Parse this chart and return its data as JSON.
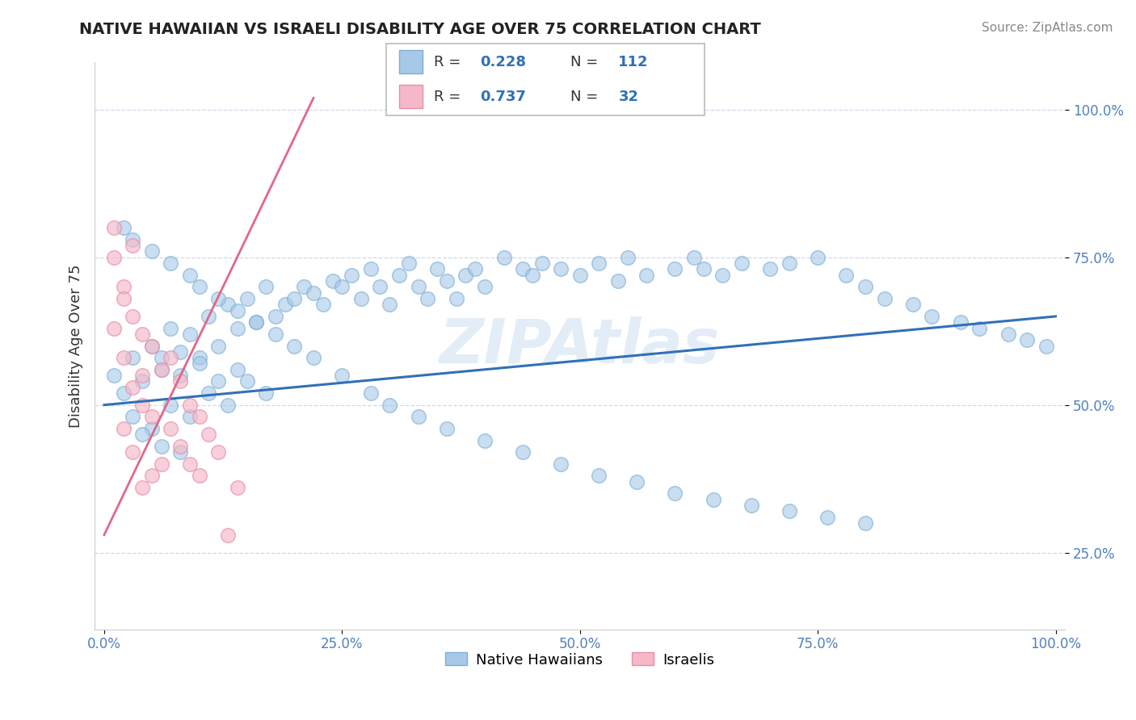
{
  "title": "NATIVE HAWAIIAN VS ISRAELI DISABILITY AGE OVER 75 CORRELATION CHART",
  "source": "Source: ZipAtlas.com",
  "ylabel": "Disability Age Over 75",
  "x_tick_labels": [
    "0.0%",
    "25.0%",
    "50.0%",
    "75.0%",
    "100.0%"
  ],
  "x_tick_vals": [
    0,
    25,
    50,
    75,
    100
  ],
  "y_tick_labels": [
    "25.0%",
    "50.0%",
    "75.0%",
    "100.0%"
  ],
  "y_tick_vals": [
    25,
    50,
    75,
    100
  ],
  "xlim": [
    -1,
    101
  ],
  "ylim": [
    12,
    108
  ],
  "blue_scatter_color": "#a8c8e8",
  "blue_edge_color": "#7bafd4",
  "pink_scatter_color": "#f4b8c8",
  "pink_edge_color": "#e890a8",
  "blue_line_color": "#3070b8",
  "pink_line_color": "#e06888",
  "watermark": "ZIPAtlas",
  "legend_R1": "0.228",
  "legend_N1": "112",
  "legend_R2": "0.737",
  "legend_N2": "32",
  "legend_text_color": "#3070b8",
  "legend_label_color": "#333333",
  "title_color": "#222222",
  "source_color": "#888888",
  "tick_color": "#5080c0",
  "grid_color": "#d0d8e8",
  "nh_x": [
    1,
    2,
    3,
    4,
    5,
    6,
    7,
    8,
    9,
    10,
    11,
    12,
    13,
    14,
    15,
    16,
    17,
    18,
    19,
    20,
    21,
    22,
    23,
    24,
    25,
    26,
    27,
    28,
    29,
    30,
    31,
    32,
    33,
    34,
    35,
    36,
    37,
    38,
    39,
    40,
    42,
    44,
    45,
    46,
    48,
    50,
    52,
    54,
    55,
    57,
    60,
    62,
    63,
    65,
    67,
    70,
    72,
    75,
    78,
    80,
    82,
    85,
    87,
    90,
    92,
    95,
    97,
    99,
    3,
    5,
    7,
    9,
    11,
    13,
    15,
    17,
    6,
    8,
    10,
    12,
    14,
    4,
    6,
    8,
    2,
    3,
    5,
    7,
    9,
    10,
    12,
    14,
    16,
    18,
    20,
    22,
    25,
    28,
    30,
    33,
    36,
    40,
    44,
    48,
    52,
    56,
    60,
    64,
    68,
    72,
    76,
    80
  ],
  "nh_y": [
    55,
    52,
    58,
    54,
    60,
    56,
    63,
    59,
    62,
    58,
    65,
    60,
    67,
    63,
    68,
    64,
    70,
    65,
    67,
    68,
    70,
    69,
    67,
    71,
    70,
    72,
    68,
    73,
    70,
    67,
    72,
    74,
    70,
    68,
    73,
    71,
    68,
    72,
    73,
    70,
    75,
    73,
    72,
    74,
    73,
    72,
    74,
    71,
    75,
    72,
    73,
    75,
    73,
    72,
    74,
    73,
    74,
    75,
    72,
    70,
    68,
    67,
    65,
    64,
    63,
    62,
    61,
    60,
    48,
    46,
    50,
    48,
    52,
    50,
    54,
    52,
    58,
    55,
    57,
    54,
    56,
    45,
    43,
    42,
    80,
    78,
    76,
    74,
    72,
    70,
    68,
    66,
    64,
    62,
    60,
    58,
    55,
    52,
    50,
    48,
    46,
    44,
    42,
    40,
    38,
    37,
    35,
    34,
    33,
    32,
    31,
    30
  ],
  "is_x": [
    1,
    1,
    2,
    2,
    2,
    3,
    3,
    3,
    4,
    4,
    4,
    5,
    5,
    5,
    6,
    6,
    7,
    7,
    8,
    8,
    9,
    9,
    10,
    10,
    11,
    12,
    13,
    14,
    1,
    2,
    3,
    4
  ],
  "is_y": [
    75,
    63,
    70,
    58,
    46,
    65,
    53,
    42,
    62,
    50,
    36,
    60,
    48,
    38,
    56,
    40,
    58,
    46,
    54,
    43,
    50,
    40,
    48,
    38,
    45,
    42,
    28,
    36,
    80,
    68,
    77,
    55
  ],
  "blue_line_x0": 0,
  "blue_line_y0": 50,
  "blue_line_x1": 100,
  "blue_line_y1": 65,
  "pink_line_x0": 0,
  "pink_line_y0": 28,
  "pink_line_x1": 22,
  "pink_line_y1": 102
}
